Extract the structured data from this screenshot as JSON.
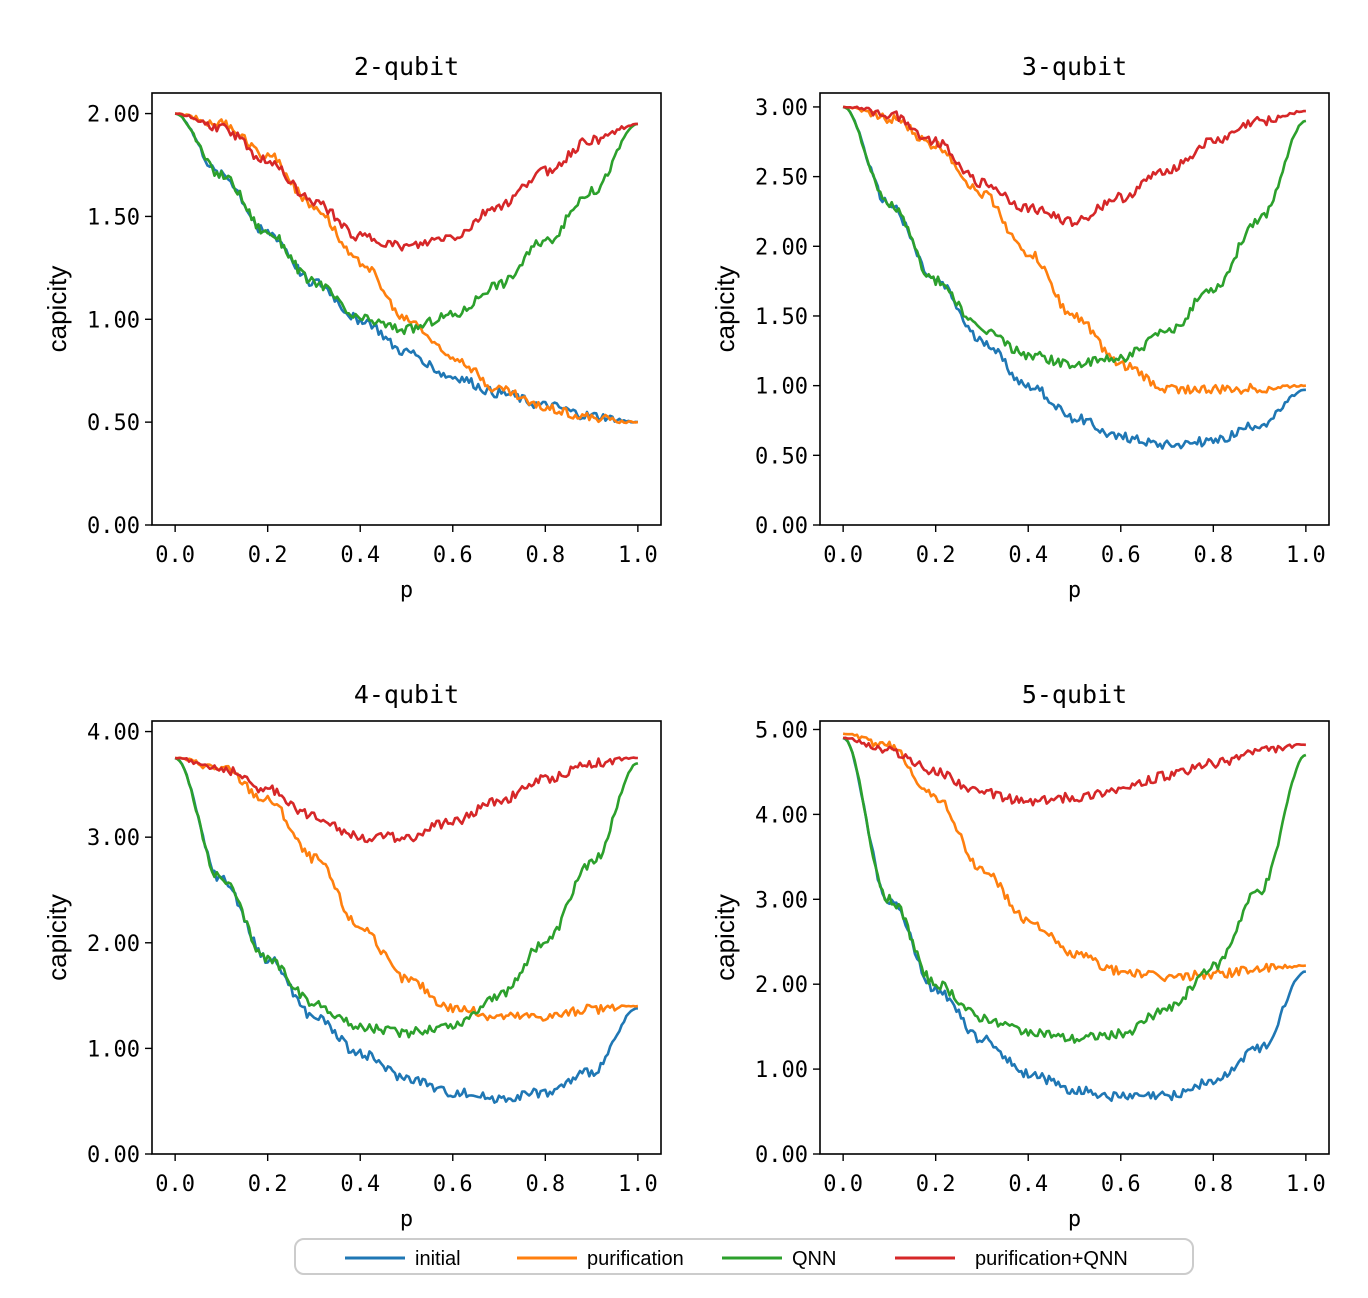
{
  "chart_data": {
    "type": "line",
    "legend": {
      "placement": "bottom-center",
      "entries": [
        {
          "name": "initial",
          "color": "#1f77b4"
        },
        {
          "name": "purification",
          "color": "#ff7f0e"
        },
        {
          "name": "QNN",
          "color": "#2ca02c"
        },
        {
          "name": "purification+QNN",
          "color": "#d62728"
        }
      ]
    },
    "x": [
      0.0,
      0.1,
      0.2,
      0.3,
      0.4,
      0.5,
      0.6,
      0.7,
      0.8,
      0.9,
      1.0
    ],
    "panels": [
      {
        "title": "2-qubit",
        "xlabel": "p",
        "ylabel": "capicity",
        "xlim": [
          -0.05,
          1.05
        ],
        "ylim": [
          0,
          2.1
        ],
        "xticks": [
          "0.0",
          "0.2",
          "0.4",
          "0.6",
          "0.8",
          "1.0"
        ],
        "xtick_values": [
          0.0,
          0.2,
          0.4,
          0.6,
          0.8,
          1.0
        ],
        "yticks": [
          "0.00",
          "0.50",
          "1.00",
          "1.50",
          "2.00"
        ],
        "ytick_values": [
          0.0,
          0.5,
          1.0,
          1.5,
          2.0
        ],
        "series": [
          {
            "name": "initial",
            "values": [
              2.0,
              1.7,
              1.42,
              1.18,
              1.0,
              0.84,
              0.72,
              0.64,
              0.58,
              0.53,
              0.5
            ]
          },
          {
            "name": "purification",
            "values": [
              2.0,
              1.95,
              1.8,
              1.55,
              1.28,
              1.0,
              0.82,
              0.66,
              0.57,
              0.52,
              0.5
            ]
          },
          {
            "name": "QNN",
            "values": [
              2.0,
              1.7,
              1.42,
              1.18,
              1.0,
              0.95,
              1.02,
              1.17,
              1.38,
              1.62,
              1.95
            ]
          },
          {
            "name": "purification+QNN",
            "values": [
              2.0,
              1.93,
              1.77,
              1.57,
              1.4,
              1.35,
              1.4,
              1.55,
              1.72,
              1.87,
              1.95
            ]
          }
        ]
      },
      {
        "title": "3-qubit",
        "xlabel": "p",
        "ylabel": "capicity",
        "xlim": [
          -0.05,
          1.05
        ],
        "ylim": [
          0,
          3.1
        ],
        "xticks": [
          "0.0",
          "0.2",
          "0.4",
          "0.6",
          "0.8",
          "1.0"
        ],
        "xtick_values": [
          0.0,
          0.2,
          0.4,
          0.6,
          0.8,
          1.0
        ],
        "yticks": [
          "0.00",
          "0.50",
          "1.00",
          "1.50",
          "2.00",
          "2.50",
          "3.00"
        ],
        "ytick_values": [
          0.0,
          0.5,
          1.0,
          1.5,
          2.0,
          2.5,
          3.0
        ],
        "series": [
          {
            "name": "initial",
            "values": [
              3.0,
              2.3,
              1.75,
              1.32,
              1.0,
              0.77,
              0.63,
              0.58,
              0.6,
              0.72,
              0.97
            ]
          },
          {
            "name": "purification",
            "values": [
              3.0,
              2.92,
              2.72,
              2.38,
              1.95,
              1.5,
              1.15,
              0.98,
              0.97,
              0.98,
              1.0
            ]
          },
          {
            "name": "QNN",
            "values": [
              3.0,
              2.3,
              1.75,
              1.4,
              1.22,
              1.15,
              1.2,
              1.38,
              1.7,
              2.2,
              2.9
            ]
          },
          {
            "name": "purification+QNN",
            "values": [
              3.0,
              2.95,
              2.75,
              2.45,
              2.27,
              2.18,
              2.35,
              2.55,
              2.75,
              2.9,
              2.97
            ]
          }
        ]
      },
      {
        "title": "4-qubit",
        "xlabel": "p",
        "ylabel": "capicity",
        "xlim": [
          -0.05,
          1.05
        ],
        "ylim": [
          0,
          4.1
        ],
        "xticks": [
          "0.0",
          "0.2",
          "0.4",
          "0.6",
          "0.8",
          "1.0"
        ],
        "xtick_values": [
          0.0,
          0.2,
          0.4,
          0.6,
          0.8,
          1.0
        ],
        "yticks": [
          "0.00",
          "1.00",
          "2.00",
          "3.00",
          "4.00"
        ],
        "ytick_values": [
          0.0,
          1.0,
          2.0,
          3.0,
          4.0
        ],
        "series": [
          {
            "name": "initial",
            "values": [
              3.75,
              2.6,
              1.85,
              1.3,
              0.95,
              0.72,
              0.58,
              0.53,
              0.58,
              0.78,
              1.38
            ]
          },
          {
            "name": "purification",
            "values": [
              3.75,
              3.65,
              3.35,
              2.8,
              2.15,
              1.65,
              1.38,
              1.3,
              1.3,
              1.37,
              1.4
            ]
          },
          {
            "name": "QNN",
            "values": [
              3.75,
              2.6,
              1.85,
              1.42,
              1.2,
              1.15,
              1.22,
              1.5,
              2.0,
              2.75,
              3.7
            ]
          },
          {
            "name": "purification+QNN",
            "values": [
              3.75,
              3.65,
              3.45,
              3.2,
              3.0,
              3.0,
              3.15,
              3.35,
              3.55,
              3.7,
              3.75
            ]
          }
        ]
      },
      {
        "title": "5-qubit",
        "xlabel": "p",
        "ylabel": "capicity",
        "xlim": [
          -0.05,
          1.05
        ],
        "ylim": [
          0,
          5.1
        ],
        "xticks": [
          "0.0",
          "0.2",
          "0.4",
          "0.6",
          "0.8",
          "1.0"
        ],
        "xtick_values": [
          0.0,
          0.2,
          0.4,
          0.6,
          0.8,
          1.0
        ],
        "yticks": [
          "0.00",
          "1.00",
          "2.00",
          "3.00",
          "4.00",
          "5.00"
        ],
        "ytick_values": [
          0.0,
          1.0,
          2.0,
          3.0,
          4.0,
          5.0
        ],
        "series": [
          {
            "name": "initial",
            "values": [
              4.9,
              3.0,
              1.95,
              1.35,
              0.95,
              0.75,
              0.67,
              0.68,
              0.85,
              1.25,
              2.15
            ]
          },
          {
            "name": "purification",
            "values": [
              4.95,
              4.8,
              4.2,
              3.35,
              2.75,
              2.35,
              2.15,
              2.08,
              2.12,
              2.18,
              2.22
            ]
          },
          {
            "name": "QNN",
            "values": [
              4.9,
              3.0,
              2.0,
              1.6,
              1.45,
              1.35,
              1.42,
              1.7,
              2.2,
              3.1,
              4.7
            ]
          },
          {
            "name": "purification+QNN",
            "values": [
              4.9,
              4.75,
              4.5,
              4.25,
              4.15,
              4.2,
              4.3,
              4.45,
              4.6,
              4.75,
              4.82
            ]
          }
        ]
      }
    ]
  }
}
